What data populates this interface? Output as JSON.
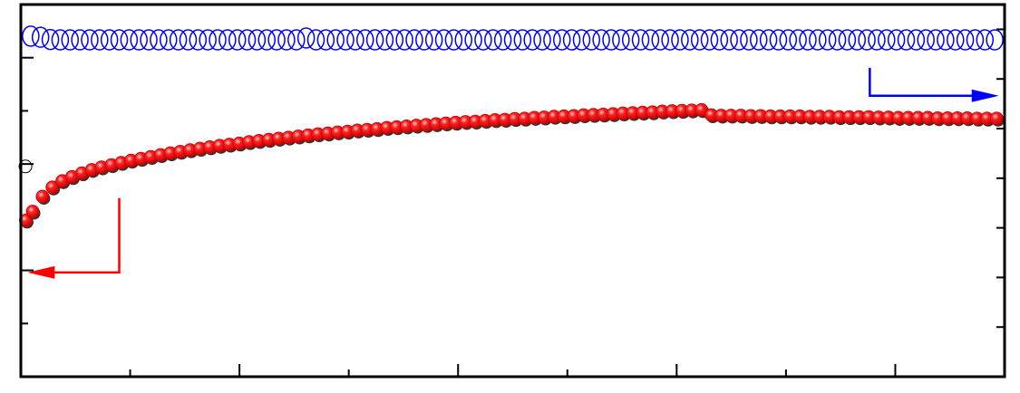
{
  "chart_data": {
    "type": "scatter",
    "title": "",
    "xlabel": "",
    "ylabel_left": "",
    "ylabel_right": "",
    "x_range": [
      0,
      100
    ],
    "y_left_range": [
      0,
      100
    ],
    "y_right_range": [
      0,
      100
    ],
    "grid": false,
    "legend": "none",
    "series": [
      {
        "axis": "right",
        "marker": "open-circle",
        "color": "#0000ff",
        "x": [
          1,
          2,
          3,
          4,
          5,
          6,
          7,
          8,
          9,
          10,
          11,
          12,
          13,
          14,
          15,
          16,
          17,
          18,
          19,
          20,
          21,
          22,
          23,
          24,
          25,
          26,
          27,
          28,
          29,
          30,
          31,
          32,
          33,
          34,
          35,
          36,
          37,
          38,
          39,
          40,
          41,
          42,
          43,
          44,
          45,
          46,
          47,
          48,
          49,
          50,
          51,
          52,
          53,
          54,
          55,
          56,
          57,
          58,
          59,
          60,
          61,
          62,
          63,
          64,
          65,
          66,
          67,
          68,
          69,
          70,
          71,
          72,
          73,
          74,
          75,
          76,
          77,
          78,
          79,
          80,
          81,
          82,
          83,
          84,
          85,
          86,
          87,
          88,
          89,
          90,
          91,
          92,
          93,
          94,
          95,
          96,
          97,
          98,
          99
        ],
        "y": [
          91.5,
          91.2,
          90.6,
          90.5,
          90.5,
          90.5,
          90.5,
          90.5,
          90.5,
          90.5,
          90.5,
          90.5,
          90.5,
          90.5,
          90.5,
          90.5,
          90.5,
          90.5,
          90.5,
          90.5,
          90.5,
          90.5,
          90.5,
          90.5,
          90.5,
          90.5,
          90.5,
          90.5,
          91,
          90.5,
          90.5,
          90.5,
          90.5,
          90.5,
          90.5,
          90.5,
          90.5,
          90.5,
          90.5,
          90.5,
          90.5,
          90.5,
          90.5,
          90.5,
          90.5,
          90.5,
          90.5,
          90.5,
          90.5,
          90.5,
          90.5,
          90.5,
          90.5,
          90.5,
          90.5,
          90.5,
          90.5,
          90.5,
          90.5,
          90.5,
          90.5,
          90.5,
          90.5,
          90.5,
          90.5,
          90.5,
          90.5,
          90.5,
          90.5,
          90.5,
          90.5,
          90.5,
          90.5,
          90.5,
          90.5,
          90.5,
          90.5,
          90.5,
          90.5,
          90.5,
          90.5,
          90.5,
          90.5,
          90.5,
          90.5,
          90.5,
          90.5,
          90.5,
          90.5,
          90.5,
          90.5,
          90.5,
          90.5,
          90.5,
          90.5,
          90.5,
          90.5,
          90.5,
          90.5
        ]
      },
      {
        "axis": "left",
        "marker": "filled-circle",
        "color": "#ff0000",
        "x": [
          0.5,
          1.2,
          2.2,
          3.2,
          4.2,
          5.2,
          6.2,
          7.2,
          8.2,
          9.2,
          10.2,
          11.2,
          12.2,
          13.2,
          14.2,
          15.2,
          16.2,
          17.2,
          18.2,
          19.2,
          20.2,
          21.2,
          22.2,
          23.2,
          24.2,
          25.2,
          26.2,
          27.2,
          28.2,
          29.2,
          30.2,
          31.2,
          32.2,
          33.2,
          34.2,
          35.2,
          36.2,
          37.2,
          38.2,
          39.2,
          40.2,
          41.2,
          42.2,
          43.2,
          44.2,
          45.2,
          46.2,
          47.2,
          48.2,
          49.2,
          50.2,
          51.2,
          52.2,
          53.2,
          54.2,
          55.2,
          56.2,
          57.2,
          58.2,
          59.2,
          60.2,
          61.2,
          62.2,
          63.2,
          64.2,
          65.2,
          66.2,
          67.2,
          68.2,
          69.2,
          70.2,
          71.2,
          72.2,
          73.2,
          74.2,
          75.2,
          76.2,
          77.2,
          78.2,
          79.2,
          80.2,
          81.2,
          82.2,
          83.2,
          84.2,
          85.2,
          86.2,
          87.2,
          88.2,
          89.2,
          90.2,
          91.2,
          92.2,
          93.2,
          94.2,
          95.2,
          96.2,
          97.2,
          98.2,
          99.2
        ],
        "y": [
          42,
          44.4,
          48.4,
          50.9,
          52.6,
          53.7,
          54.7,
          55.6,
          56.3,
          56.9,
          57.5,
          58.1,
          58.6,
          59.1,
          59.6,
          60.1,
          60.5,
          60.9,
          61.3,
          61.7,
          62.1,
          62.4,
          62.7,
          63.1,
          63.4,
          63.7,
          64,
          64.3,
          64.6,
          64.9,
          65.2,
          65.4,
          65.7,
          65.9,
          66.2,
          66.4,
          66.6,
          66.9,
          67.1,
          67.3,
          67.5,
          67.7,
          67.9,
          68.1,
          68.3,
          68.5,
          68.6,
          68.8,
          69,
          69.1,
          69.3,
          69.4,
          69.6,
          69.7,
          69.9,
          70,
          70.1,
          70.3,
          70.4,
          70.5,
          70.6,
          70.8,
          70.9,
          71,
          71.1,
          71.3,
          71.4,
          71.5,
          71.6,
          71.7,
          70.3,
          70.2,
          70.2,
          70.2,
          70.1,
          70.1,
          70,
          70,
          70,
          70,
          69.9,
          69.9,
          69.9,
          69.8,
          69.8,
          69.8,
          69.8,
          69.7,
          69.7,
          69.6,
          69.6,
          69.6,
          69.6,
          69.5,
          69.5,
          69.5,
          69.5,
          69.4,
          69.4,
          69.4
        ]
      }
    ],
    "stray_marker": {
      "axis": "left",
      "marker": "open-circle",
      "color": "#000000",
      "x": 0.1,
      "y": 56.5
    },
    "annotations": [
      {
        "name": "left-axis-arrow",
        "color": "#ff0000",
        "points": [
          [
            10,
            48
          ],
          [
            10,
            28
          ],
          [
            1.6,
            28
          ]
        ]
      },
      {
        "name": "right-axis-arrow",
        "color": "#0000ff",
        "points": [
          [
            86.3,
            83
          ],
          [
            86.3,
            75.5
          ],
          [
            98.5,
            75.5
          ]
        ]
      }
    ]
  }
}
